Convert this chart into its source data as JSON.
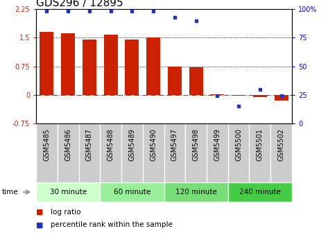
{
  "title": "GDS296 / 12895",
  "samples": [
    "GSM5485",
    "GSM5486",
    "GSM5487",
    "GSM5488",
    "GSM5489",
    "GSM5490",
    "GSM5497",
    "GSM5498",
    "GSM5499",
    "GSM5500",
    "GSM5501",
    "GSM5502"
  ],
  "log_ratio": [
    1.65,
    1.62,
    1.45,
    1.57,
    1.45,
    1.5,
    0.75,
    0.73,
    0.01,
    -0.02,
    -0.05,
    -0.15
  ],
  "percentile": [
    98,
    98,
    98,
    98,
    98,
    98,
    93,
    90,
    24,
    15,
    30,
    24
  ],
  "ylim_left": [
    -0.75,
    2.25
  ],
  "ylim_right": [
    0,
    100
  ],
  "yticks_left": [
    -0.75,
    0,
    0.75,
    1.5,
    2.25
  ],
  "yticks_right": [
    0,
    25,
    50,
    75,
    100
  ],
  "hlines": [
    0.75,
    1.5
  ],
  "bar_color": "#cc2200",
  "dot_color": "#2233bb",
  "zero_line_color": "#cc2200",
  "bg_color": "#ffffff",
  "label_bg_color": "#cccccc",
  "groups": [
    {
      "label": "30 minute",
      "start": 0,
      "end": 2,
      "color": "#ccffcc"
    },
    {
      "label": "60 minute",
      "start": 3,
      "end": 5,
      "color": "#99ee99"
    },
    {
      "label": "120 minute",
      "start": 6,
      "end": 8,
      "color": "#77dd77"
    },
    {
      "label": "240 minute",
      "start": 9,
      "end": 11,
      "color": "#44cc44"
    }
  ],
  "legend_bar_label": "log ratio",
  "legend_dot_label": "percentile rank within the sample",
  "time_label": "time",
  "title_fontsize": 11,
  "tick_fontsize": 7,
  "label_fontsize": 7.5
}
